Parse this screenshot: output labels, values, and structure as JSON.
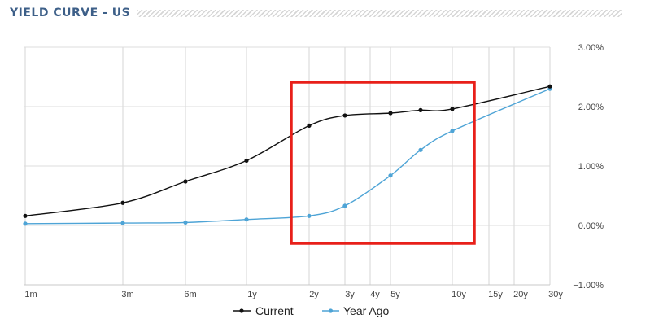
{
  "chart_data": {
    "type": "line",
    "title": "YIELD CURVE - US",
    "xlabel": "",
    "ylabel": "",
    "x_tick_labels": [
      "1m",
      "3m",
      "6m",
      "1y",
      "2y",
      "3y",
      "4y",
      "5y",
      "10y",
      "15y",
      "20y",
      "30y"
    ],
    "y_tick_labels": [
      "3.00%",
      "2.00%",
      "1.00%",
      "0.00%",
      "−1.00%"
    ],
    "ylim": [
      -1.0,
      3.0
    ],
    "y_axis_position": "right",
    "grid": {
      "vertical": true,
      "horizontal": true
    },
    "legend_position": "bottom-center",
    "series": [
      {
        "name": "Current",
        "color": "#111111",
        "x": [
          "1m",
          "3m",
          "6m",
          "1y",
          "2y",
          "3y",
          "5y",
          "7y",
          "10y",
          "30y"
        ],
        "values": [
          0.16,
          0.38,
          0.74,
          1.09,
          1.68,
          1.85,
          1.89,
          1.94,
          1.96,
          2.34
        ]
      },
      {
        "name": "Year Ago",
        "color": "#4ea4d6",
        "x": [
          "1m",
          "3m",
          "6m",
          "1y",
          "2y",
          "3y",
          "5y",
          "7y",
          "10y",
          "30y"
        ],
        "values": [
          0.03,
          0.04,
          0.05,
          0.1,
          0.16,
          0.33,
          0.84,
          1.27,
          1.59,
          2.3
        ]
      }
    ],
    "annotation": {
      "type": "highlight-box",
      "color": "#e8201a",
      "x_range": [
        "2y",
        "10y"
      ]
    }
  }
}
